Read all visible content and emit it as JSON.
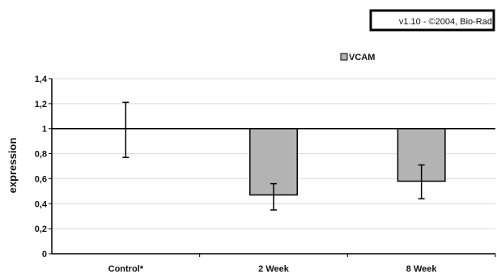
{
  "version_box": {
    "text": "v1.10 - ©2004, Bio-Rad"
  },
  "chart_data": {
    "type": "bar",
    "categories": [
      "Control*",
      "2 Week",
      "8 Week"
    ],
    "series": [
      {
        "name": "VCAM",
        "values": [
          1.0,
          0.47,
          0.58
        ],
        "error_bars": [
          {
            "low": 0.77,
            "high": 1.21
          },
          {
            "low": 0.35,
            "high": 0.56
          },
          {
            "low": 0.44,
            "high": 0.71
          }
        ]
      }
    ],
    "bar_baseline": 1.0,
    "reference_line": 1.0,
    "ylabel": "expression",
    "xlabel": "",
    "ylim": [
      0,
      1.4
    ],
    "yticks": [
      "0",
      "0,2",
      "0,4",
      "0,6",
      "0,8",
      "1",
      "1,2",
      "1,4"
    ],
    "grid": true,
    "legend_position": "top-center",
    "colors": {
      "bar_fill": "#b3b3b3",
      "bar_stroke": "#000000",
      "grid": "#d9d9d9"
    }
  }
}
